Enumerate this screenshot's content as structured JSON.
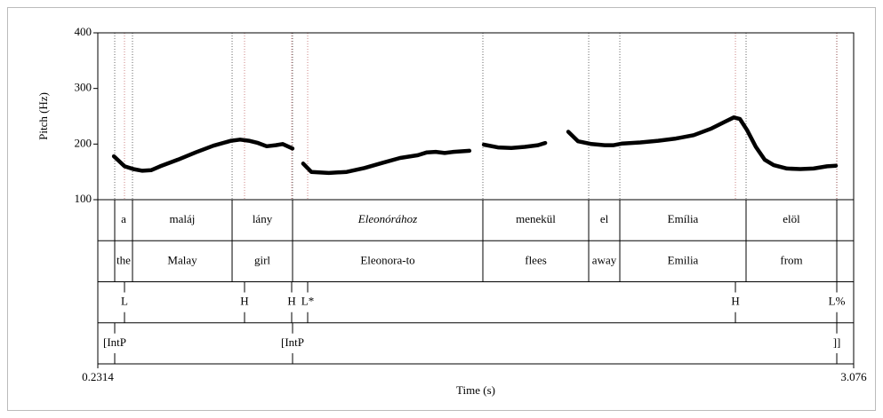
{
  "chart_data": {
    "type": "line",
    "xlabel": "Time (s)",
    "ylabel": "Pitch (Hz)",
    "xlim": [
      0.2314,
      3.076
    ],
    "xticks": [
      0.2314,
      3.076
    ],
    "ylim": [
      100,
      400
    ],
    "yticks": [
      100,
      200,
      300,
      400
    ],
    "color": "#000000",
    "series": [
      {
        "x": [
          0.292,
          0.332,
          0.365,
          0.399,
          0.432,
          0.466,
          0.533,
          0.6,
          0.666,
          0.733,
          0.767,
          0.8,
          0.834,
          0.867,
          0.901,
          0.927,
          0.964,
          null,
          1.004,
          1.035,
          1.101,
          1.168,
          1.235,
          1.302,
          1.369,
          1.436,
          1.47,
          1.503,
          1.537,
          1.57,
          1.63,
          null,
          1.684,
          1.737,
          1.788,
          1.838,
          1.888,
          1.915,
          null,
          2.002,
          2.039,
          2.089,
          2.139,
          2.173,
          2.206,
          2.273,
          2.34,
          2.407,
          2.474,
          2.541,
          2.591,
          2.625,
          2.648,
          2.675,
          2.708,
          2.741,
          2.775,
          2.825,
          2.875,
          2.925,
          2.976,
          3.009
        ],
        "values": [
          178,
          160,
          155,
          152,
          153,
          160,
          172,
          185,
          197,
          206,
          208,
          206,
          202,
          196,
          198,
          200,
          192,
          null,
          165,
          150,
          148,
          150,
          157,
          166,
          175,
          180,
          185,
          186,
          184,
          186,
          188,
          null,
          199,
          194,
          193,
          195,
          198,
          202,
          null,
          222,
          205,
          200,
          198,
          198,
          201,
          203,
          206,
          210,
          216,
          228,
          240,
          248,
          245,
          225,
          195,
          172,
          162,
          156,
          155,
          156,
          160,
          161
        ]
      }
    ],
    "tiers": [
      {
        "kind": "interval",
        "boundaries": [
          0.295,
          0.3619,
          0.7368,
          0.9643,
          1.6805,
          2.0788,
          2.1959,
          2.6711,
          3.0125
        ],
        "labels": [
          "a",
          "maláj",
          "lány",
          "Eleonórához",
          "menekül",
          "el",
          "Emília",
          "elöl"
        ]
      },
      {
        "kind": "interval",
        "boundaries": [
          0.295,
          0.3619,
          0.7368,
          0.9643,
          1.6805,
          2.0788,
          2.1959,
          2.6711,
          3.0125
        ],
        "labels": [
          "the",
          "Malay",
          "girl",
          "Eleonora-to",
          "flees",
          "away",
          "Emilia",
          "from"
        ]
      },
      {
        "kind": "point",
        "times": [
          0.3318,
          0.7836,
          0.961,
          1.0212,
          2.631,
          3.0125
        ],
        "labels": [
          "L",
          "H",
          "H",
          "L*",
          "H",
          "L%"
        ]
      },
      {
        "kind": "point",
        "times": [
          0.295,
          0.9643,
          3.0125
        ],
        "labels": [
          "[IntP",
          "[IntP",
          "]]"
        ]
      }
    ]
  }
}
